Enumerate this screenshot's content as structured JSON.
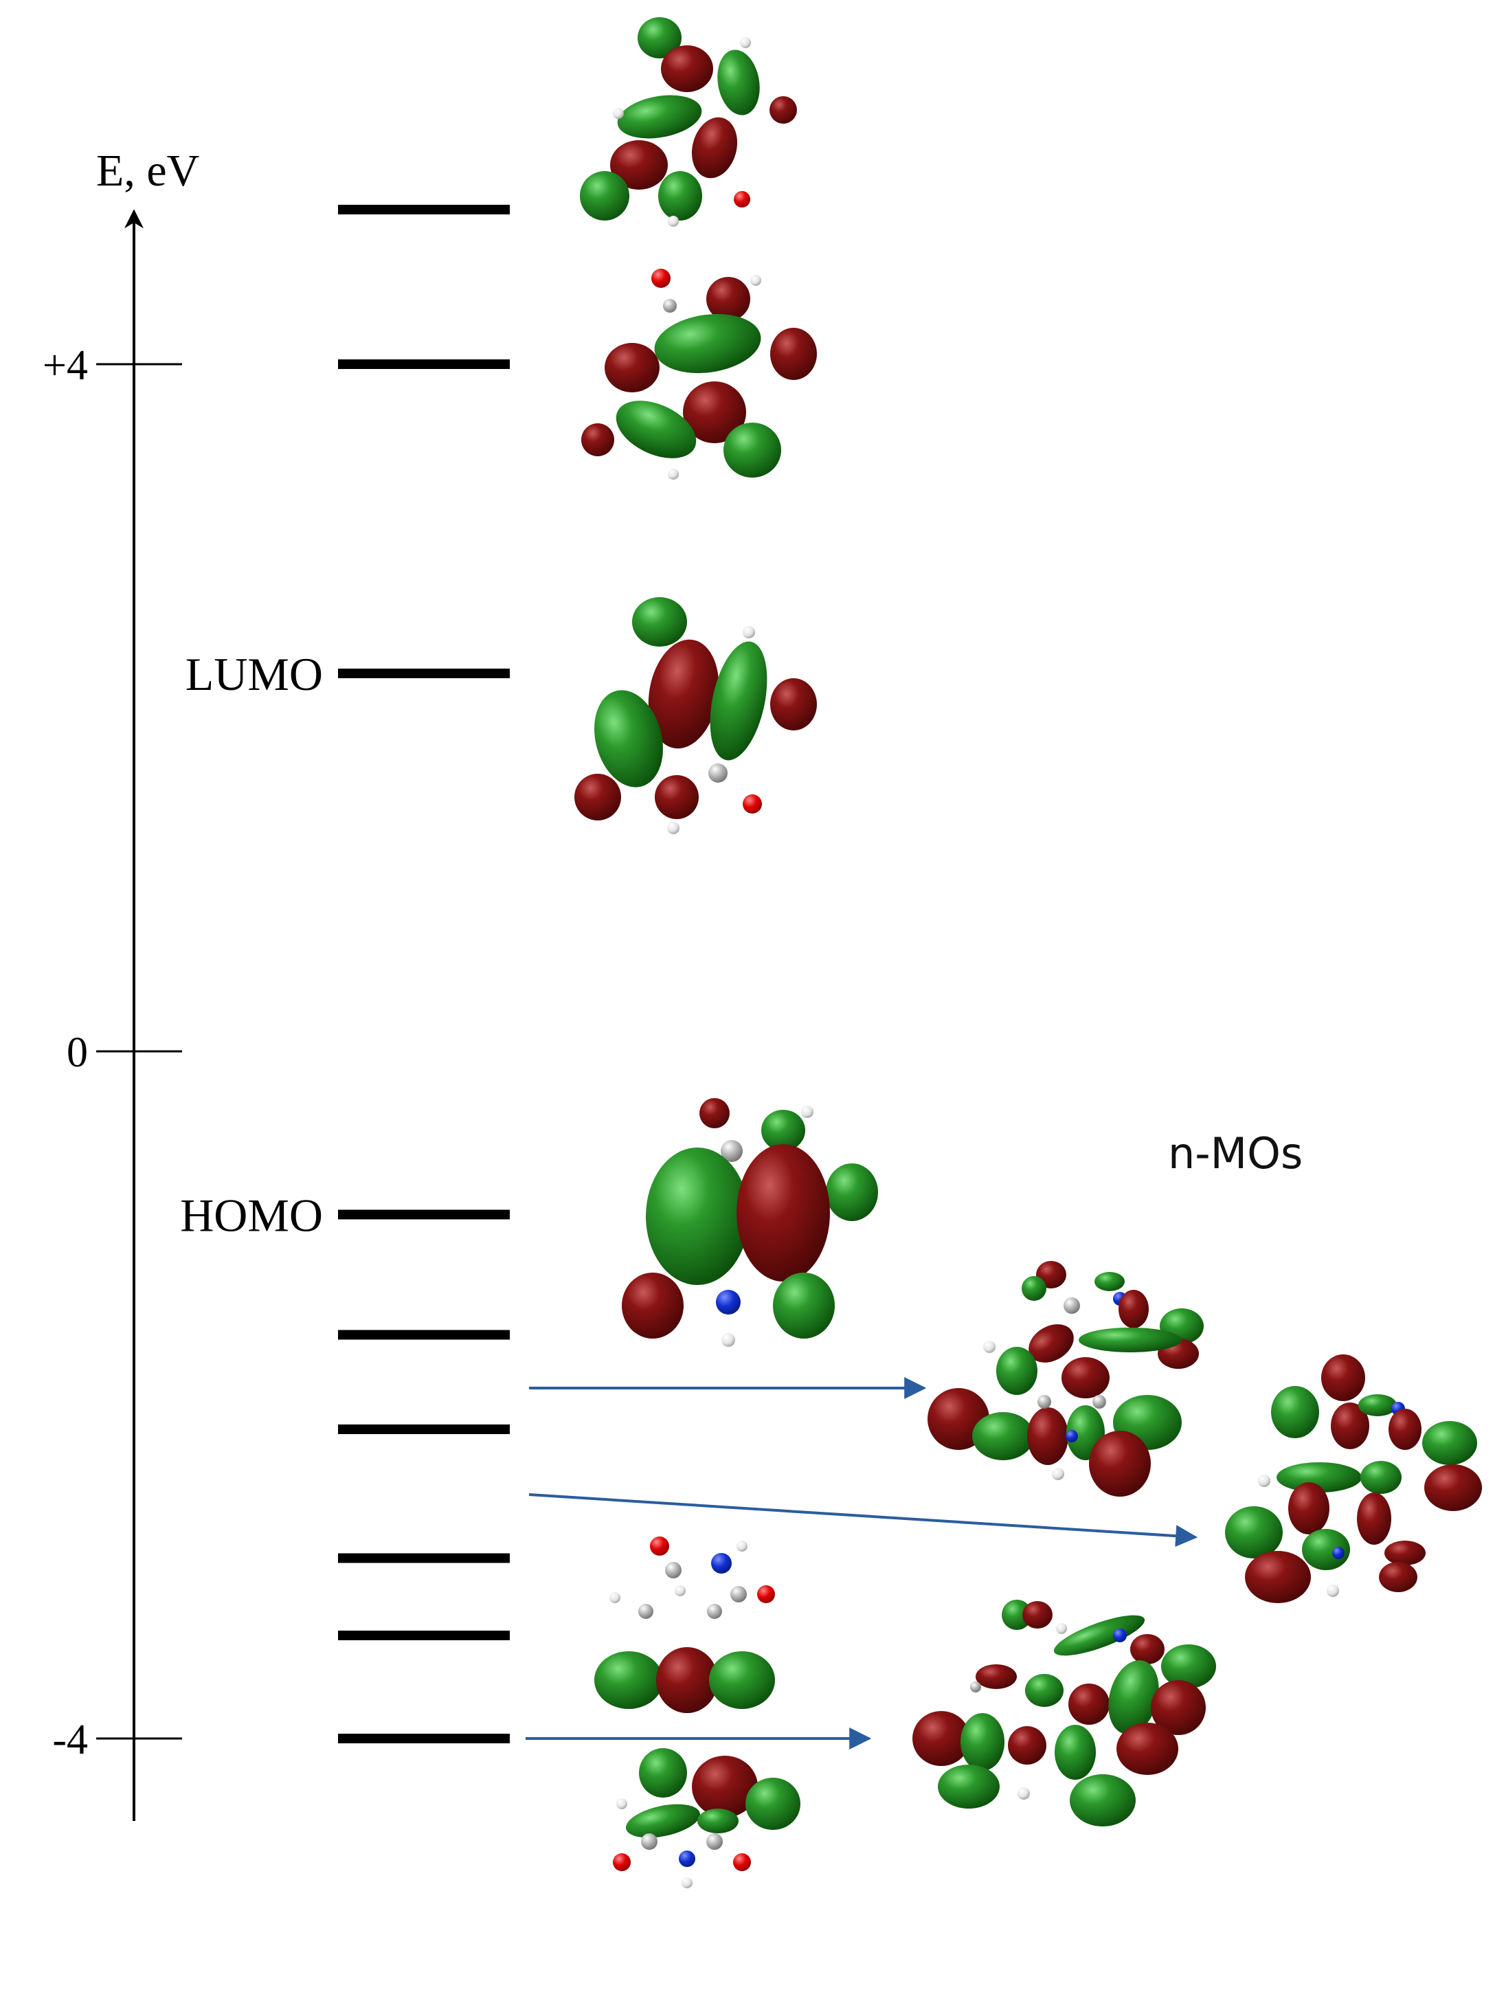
{
  "axis": {
    "label": "E, eV",
    "ticks": [
      {
        "value": 4,
        "label": "+4"
      },
      {
        "value": 0,
        "label": "0"
      },
      {
        "value": -4,
        "label": "-4"
      }
    ]
  },
  "levels": [
    {
      "id": "level-1",
      "energy": 4.9,
      "label": ""
    },
    {
      "id": "level-2",
      "energy": 4.0,
      "label": ""
    },
    {
      "id": "lumo",
      "energy": 2.2,
      "label": "LUMO"
    },
    {
      "id": "homo",
      "energy": -0.95,
      "label": "HOMO"
    },
    {
      "id": "level-5",
      "energy": -1.65,
      "label": ""
    },
    {
      "id": "level-6",
      "energy": -2.2,
      "label": ""
    },
    {
      "id": "level-7",
      "energy": -2.95,
      "label": ""
    },
    {
      "id": "level-8",
      "energy": -3.4,
      "label": ""
    },
    {
      "id": "level-9",
      "energy": -4.0,
      "label": ""
    }
  ],
  "group_label": "n-MOs",
  "colors": {
    "positive_lobe": "#1e7a1e",
    "negative_lobe": "#7a1010",
    "oxygen": "#e00000",
    "nitrogen": "#1030d0",
    "carbon": "#b0b0b0",
    "hydrogen": "#e8e8e8",
    "arrow": "#2a5d9f",
    "axis": "#000000"
  }
}
